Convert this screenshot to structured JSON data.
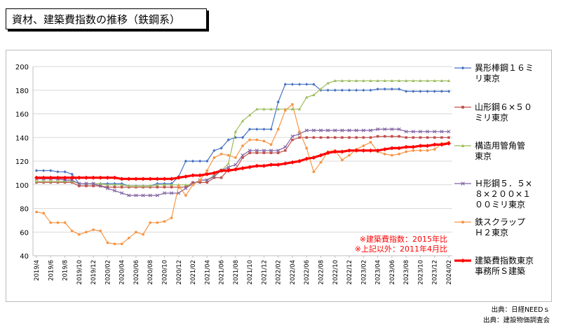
{
  "header": {
    "title": "資材、建築費指数の推移（鉄鋼系）"
  },
  "sources": [
    "出典：日経NEEDｓ",
    "出典：建設物価調査会"
  ],
  "notes": [
    "※建築費指数：2015年比",
    "※上記以外：2011年4月比"
  ],
  "colors": {
    "note": "#ff0000"
  },
  "chart_data": {
    "type": "line",
    "ylim": [
      40,
      200
    ],
    "yticks": [
      40,
      60,
      80,
      100,
      120,
      140,
      160,
      180,
      200
    ],
    "x": [
      "2019/4",
      "2019/5",
      "2019/6",
      "2019/7",
      "2019/8",
      "2019/9",
      "2019/10",
      "2019/11",
      "2019/12",
      "2020/01",
      "2020/02",
      "2020/03",
      "2020/04",
      "2020/05",
      "2020/06",
      "2020/07",
      "2020/08",
      "2020/09",
      "2020/10",
      "2020/11",
      "2020/12",
      "2021/01",
      "2021/02",
      "2021/03",
      "2021/04",
      "2021/05",
      "2021/06",
      "2021/07",
      "2021/08",
      "2021/09",
      "2021/10",
      "2021/11",
      "2021/12",
      "2022/01",
      "2022/02",
      "2022/03",
      "2022/04",
      "2022/05",
      "2022/06",
      "2022/07",
      "2022/08",
      "2022/09",
      "2022/10",
      "2022/11",
      "2022/12",
      "2023/01",
      "2023/02",
      "2023/03",
      "2023/04",
      "2023/05",
      "2023/06",
      "2023/07",
      "2023/08",
      "2023/09",
      "2023/10",
      "2023/11",
      "2023/12",
      "2024/01",
      "2024/02"
    ],
    "xticklabels": [
      "2019/4",
      "2019/6",
      "2019/8",
      "2019/10",
      "2019/12",
      "2020/02",
      "2020/04",
      "2020/06",
      "2020/08",
      "2020/10",
      "2020/12",
      "2021/02",
      "2021/04",
      "2021/06",
      "2021/08",
      "2021/10",
      "2021/12",
      "2022/02",
      "2022/04",
      "2022/06",
      "2022/08",
      "2022/10",
      "2022/12",
      "2023/02",
      "2023/04",
      "2023/06",
      "2023/08",
      "2023/10",
      "2023/12",
      "2024/02"
    ],
    "legend_position": "right",
    "grid": "horizontal",
    "series": [
      {
        "name": "異形棒鋼１６ミリ　東京",
        "color": "#4472c4",
        "marker": "diamond",
        "values": [
          112,
          112,
          112,
          111,
          111,
          109,
          101,
          101,
          101,
          101,
          101,
          101,
          101,
          99,
          99,
          99,
          99,
          101,
          101,
          101,
          107,
          120,
          120,
          120,
          120,
          129,
          131,
          138,
          140,
          140,
          147,
          147,
          147,
          147,
          170,
          185,
          185,
          185,
          185,
          185,
          180,
          180,
          180,
          180,
          180,
          180,
          180,
          180,
          181,
          181,
          181,
          181,
          179,
          179,
          179,
          179,
          179,
          179,
          179
        ]
      },
      {
        "name": "山形鋼６×５０ミリ　東京",
        "color": "#c0504d",
        "marker": "square",
        "values": [
          102,
          102,
          102,
          102,
          102,
          102,
          99,
          99,
          99,
          99,
          98,
          98,
          98,
          98,
          98,
          98,
          98,
          98,
          98,
          98,
          98,
          98,
          102,
          102,
          102,
          106,
          106,
          113,
          113,
          123,
          127,
          127,
          127,
          127,
          127,
          129,
          138,
          140,
          140,
          140,
          140,
          140,
          140,
          140,
          140,
          140,
          140,
          140,
          141,
          141,
          141,
          141,
          140,
          140,
          140,
          140,
          140,
          140,
          140
        ]
      },
      {
        "name": "構造用管　角管　東京",
        "color": "#9bbb59",
        "marker": "triangle",
        "values": [
          103,
          103,
          103,
          103,
          103,
          103,
          101,
          101,
          101,
          101,
          100,
          100,
          100,
          99,
          99,
          99,
          99,
          100,
          100,
          100,
          100,
          100,
          100,
          104,
          104,
          108,
          112,
          118,
          145,
          154,
          159,
          164,
          164,
          164,
          164,
          164,
          164,
          164,
          174,
          176,
          181,
          186,
          188,
          188,
          188,
          188,
          188,
          188,
          188,
          188,
          188,
          188,
          188,
          188,
          188,
          188,
          188,
          188,
          188
        ]
      },
      {
        "name": "Ｈ形鋼５．５×８×２００×１００ミリ　東京",
        "color": "#8064a2",
        "marker": "x",
        "values": [
          105,
          105,
          105,
          105,
          104,
          104,
          101,
          101,
          101,
          99,
          97,
          95,
          93,
          91,
          91,
          91,
          91,
          91,
          93,
          93,
          93,
          97,
          101,
          104,
          104,
          107,
          112,
          115,
          117,
          125,
          129,
          129,
          129,
          129,
          129,
          132,
          141,
          143,
          146,
          146,
          146,
          146,
          146,
          146,
          146,
          146,
          146,
          146,
          147,
          147,
          147,
          147,
          145,
          145,
          145,
          145,
          145,
          145,
          145
        ]
      },
      {
        "name": "鉄スクラップＨ２　東京",
        "color": "#f79646",
        "marker": "circle",
        "values": [
          77,
          76,
          68,
          68,
          68,
          61,
          58,
          60,
          62,
          61,
          51,
          50,
          50,
          55,
          60,
          58,
          68,
          68,
          69,
          72,
          99,
          91,
          100,
          104,
          112,
          123,
          126,
          125,
          123,
          133,
          138,
          138,
          137,
          134,
          147,
          163,
          168,
          145,
          131,
          111,
          119,
          128,
          129,
          121,
          125,
          130,
          133,
          136,
          128,
          126,
          125,
          126,
          128,
          129,
          129,
          129,
          130,
          135,
          136
        ]
      },
      {
        "name": "建築費指数 東京事務所　Ｓ　建築",
        "color": "#ff0000",
        "marker": "diamond",
        "bold": true,
        "values": [
          106,
          106,
          106,
          106,
          106,
          106,
          106,
          106,
          106,
          106,
          106,
          106,
          105,
          105,
          105,
          105,
          105,
          105,
          105,
          105,
          106,
          107,
          108,
          108,
          109,
          110,
          112,
          112,
          113,
          114,
          115,
          116,
          116,
          117,
          117,
          118,
          119,
          120,
          122,
          123,
          125,
          127,
          128,
          128,
          129,
          129,
          129,
          129,
          129,
          130,
          131,
          131,
          132,
          132,
          133,
          133,
          134,
          134,
          135
        ]
      }
    ]
  }
}
